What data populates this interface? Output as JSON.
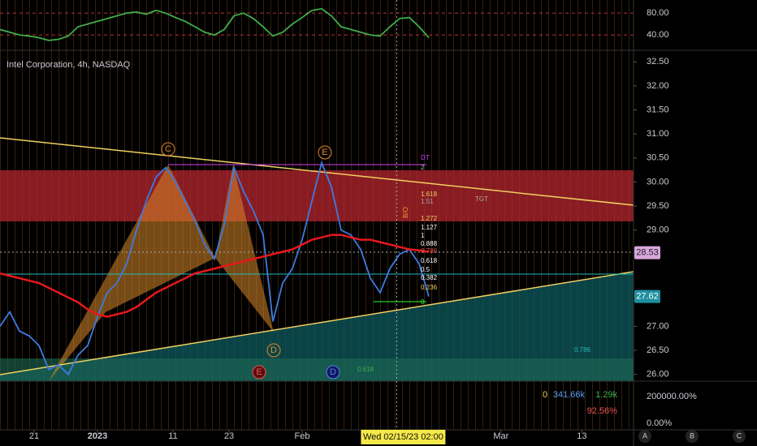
{
  "chart_data": [
    {
      "type": "line",
      "title": "Intel Corporation, 4h, NASDAQ",
      "x": [
        0,
        1,
        2,
        3,
        4,
        5,
        6,
        7,
        8,
        9,
        10,
        11,
        12,
        13,
        14,
        15,
        16,
        17,
        18,
        19,
        20,
        21,
        22,
        23,
        24,
        25,
        26,
        27,
        28,
        29,
        30,
        31,
        32,
        33,
        34,
        35,
        36,
        37,
        38,
        39,
        40,
        41,
        42,
        43,
        44
      ],
      "series": [
        {
          "color": "#3d7be0",
          "values": [
            27.0,
            27.3,
            26.9,
            26.8,
            26.6,
            26.1,
            26.2,
            26.0,
            26.4,
            26.6,
            27.2,
            27.7,
            27.9,
            28.3,
            29.0,
            29.6,
            30.1,
            30.3,
            30.0,
            29.6,
            29.2,
            28.7,
            28.4,
            29.1,
            30.3,
            29.8,
            29.4,
            28.9,
            27.1,
            27.9,
            28.2,
            28.8,
            29.6,
            30.4,
            29.9,
            29.0,
            28.9,
            28.6,
            28.0,
            27.7,
            28.2,
            28.5,
            28.6,
            28.3,
            27.62
          ]
        },
        {
          "color": "#e8171b",
          "values": [
            28.1,
            28.05,
            28.0,
            27.95,
            27.9,
            27.8,
            27.7,
            27.6,
            27.5,
            27.35,
            27.25,
            27.2,
            27.25,
            27.3,
            27.4,
            27.55,
            27.7,
            27.8,
            27.9,
            28.0,
            28.1,
            28.15,
            28.2,
            28.25,
            28.3,
            28.35,
            28.4,
            28.45,
            28.5,
            28.55,
            28.6,
            28.7,
            28.8,
            28.85,
            28.9,
            28.9,
            28.85,
            28.8,
            28.8,
            28.75,
            28.7,
            28.65,
            28.6,
            28.58,
            28.55
          ]
        }
      ],
      "xlim": [
        0,
        65
      ],
      "xticks": [
        {
          "value": 3.5,
          "label": "21"
        },
        {
          "value": 10,
          "label": "2023"
        },
        {
          "value": 17.75,
          "label": "11"
        },
        {
          "value": 23.5,
          "label": "23"
        },
        {
          "value": 31,
          "label": "Feb"
        },
        {
          "value": 51.4,
          "label": "Mar"
        },
        {
          "value": 59.7,
          "label": "13"
        }
      ],
      "ylim": [
        25.86,
        32.74
      ],
      "yticks": [
        {
          "value": 32.5,
          "label": "32.50"
        },
        {
          "value": 32,
          "label": "32.00"
        },
        {
          "value": 31.5,
          "label": "31.50"
        },
        {
          "value": 31,
          "label": "31.00"
        },
        {
          "value": 30.5,
          "label": "30.50"
        },
        {
          "value": 30,
          "label": "30.00"
        },
        {
          "value": 29.5,
          "label": "29.50"
        },
        {
          "value": 29,
          "label": "29.00"
        },
        {
          "value": 27,
          "label": "27.00"
        },
        {
          "value": 26.5,
          "label": "26.50"
        },
        {
          "value": 26,
          "label": "26.00"
        }
      ],
      "price_labels": [
        28.53,
        27.62
      ],
      "crosshair": {
        "value": 40.7,
        "label": "Wed 02/15/23   02:00"
      },
      "annotations": [
        "C",
        "E",
        "D",
        "E",
        "D",
        "B/O",
        "DT",
        "2",
        "1.618",
        "1.51",
        "TGT",
        "1.272",
        "1.127",
        "1",
        "0.888",
        "0.786",
        "0.618",
        "0.5",
        "0.382",
        "0.236",
        "0",
        "0.786",
        "0.618"
      ]
    },
    {
      "type": "line",
      "x": [
        0,
        1,
        2,
        3,
        4,
        5,
        6,
        7,
        8,
        9,
        10,
        11,
        12,
        13,
        14,
        15,
        16,
        17,
        18,
        19,
        20,
        21,
        22,
        23,
        24,
        25,
        26,
        27,
        28,
        29,
        30,
        31,
        32,
        33,
        34,
        35,
        36,
        37,
        38,
        39,
        40,
        41,
        42,
        43,
        44
      ],
      "series": [
        {
          "color": "#3fae49",
          "values": [
            50,
            45,
            40,
            38,
            35,
            30,
            32,
            38,
            55,
            60,
            65,
            70,
            75,
            80,
            82,
            78,
            85,
            80,
            72,
            65,
            55,
            45,
            40,
            50,
            75,
            80,
            70,
            55,
            38,
            45,
            60,
            72,
            85,
            88,
            75,
            55,
            50,
            45,
            40,
            38,
            55,
            70,
            72,
            55,
            35
          ]
        }
      ],
      "xlim": [
        0,
        65
      ],
      "ylim": [
        12,
        104
      ],
      "yticks": [
        {
          "value": 80,
          "label": "80.00"
        },
        {
          "value": 40,
          "label": "40.00"
        }
      ]
    }
  ],
  "volume_pane": {
    "legend": [
      "0",
      "341.66k",
      "1.29k"
    ],
    "percent": "92.56%",
    "ticks": [
      "200000.00%",
      "0.00%"
    ]
  },
  "buttons": [
    "A",
    "B",
    "C"
  ]
}
